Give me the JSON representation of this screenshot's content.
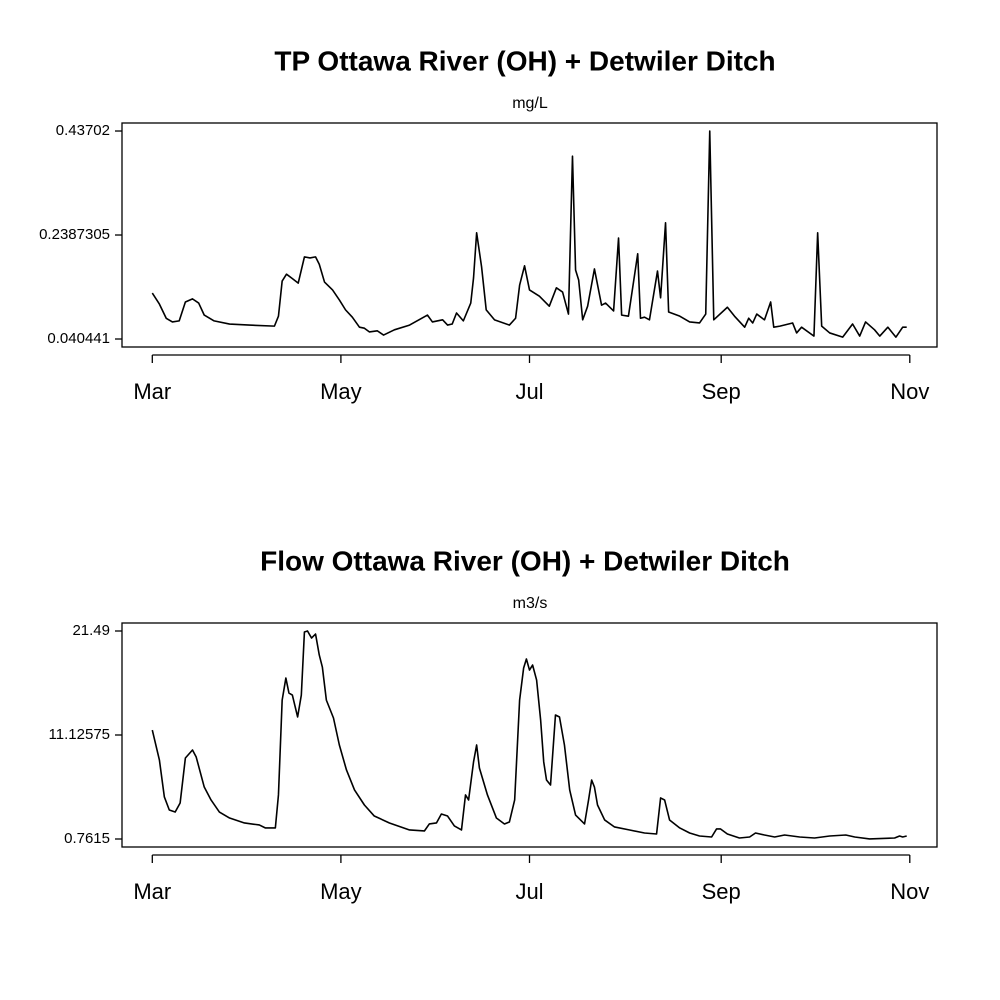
{
  "chart_data": [
    {
      "type": "line",
      "title": "TP Ottawa River (OH) + Detwiler Ditch",
      "subtitle": "mg/L",
      "color": "#000000",
      "x": [
        0,
        2.3,
        4.5,
        6.5,
        8.7,
        10.7,
        13,
        15,
        16.8,
        20,
        25,
        31.4,
        39.5,
        40.8,
        42,
        43.4,
        45,
        47.2,
        49.2,
        51,
        52.8,
        54,
        55.7,
        58.3,
        60.5,
        62.5,
        64.7,
        67,
        68.6,
        70.2,
        72.8,
        74.8,
        78.3,
        83.2,
        89,
        90.6,
        93.9,
        95.5,
        97,
        98.4,
        100.6,
        103,
        103.9,
        104.9,
        106.5,
        108,
        110.7,
        115.5,
        117.5,
        118.8,
        120.4,
        122,
        125.2,
        128.4,
        130.7,
        132.7,
        134.6,
        135.9,
        136.9,
        137.9,
        139.2,
        140.8,
        143,
        145.3,
        146.6,
        149.2,
        150.8,
        151.8,
        154,
        157,
        157.9,
        159.2,
        160.8,
        163.4,
        164.4,
        166,
        167,
        170.6,
        173.8,
        177,
        179,
        180.3,
        181.6,
        186,
        188.3,
        191.6,
        192.9,
        194.2,
        195.5,
        198,
        200,
        201,
        203,
        207.1,
        208.4,
        210,
        214,
        215.2,
        216.5,
        219.1,
        223.3,
        226.5,
        228.8,
        230.7,
        233.6,
        235.3,
        237.9,
        240.5,
        242.7,
        244
      ],
      "values": [
        0.128,
        0.107,
        0.08,
        0.073,
        0.075,
        0.111,
        0.117,
        0.109,
        0.086,
        0.075,
        0.069,
        0.067,
        0.065,
        0.084,
        0.151,
        0.164,
        0.157,
        0.147,
        0.197,
        0.195,
        0.197,
        0.183,
        0.149,
        0.134,
        0.115,
        0.096,
        0.082,
        0.063,
        0.061,
        0.054,
        0.056,
        0.048,
        0.058,
        0.067,
        0.086,
        0.073,
        0.077,
        0.067,
        0.069,
        0.09,
        0.075,
        0.109,
        0.157,
        0.243,
        0.178,
        0.096,
        0.077,
        0.067,
        0.08,
        0.143,
        0.18,
        0.134,
        0.122,
        0.103,
        0.138,
        0.13,
        0.088,
        0.389,
        0.172,
        0.153,
        0.077,
        0.103,
        0.174,
        0.105,
        0.109,
        0.094,
        0.233,
        0.086,
        0.084,
        0.203,
        0.08,
        0.082,
        0.077,
        0.17,
        0.119,
        0.262,
        0.092,
        0.084,
        0.073,
        0.071,
        0.088,
        0.437,
        0.077,
        0.101,
        0.084,
        0.063,
        0.08,
        0.071,
        0.088,
        0.077,
        0.111,
        0.063,
        0.065,
        0.071,
        0.052,
        0.063,
        0.046,
        0.243,
        0.065,
        0.052,
        0.044,
        0.069,
        0.046,
        0.073,
        0.058,
        0.046,
        0.063,
        0.044,
        0.063,
        0.063
      ],
      "xlim": [
        -9.8,
        253.8
      ],
      "xticks": [
        {
          "value": 0,
          "label": "Mar"
        },
        {
          "value": 61,
          "label": "May"
        },
        {
          "value": 122,
          "label": "Jul"
        },
        {
          "value": 184,
          "label": "Sep"
        },
        {
          "value": 245,
          "label": "Nov"
        }
      ],
      "ylim": [
        0.0252,
        0.4523
      ],
      "yticks": [
        0.040441,
        0.2387305,
        0.43702
      ]
    },
    {
      "type": "line",
      "title": "Flow Ottawa River (OH) + Detwiler Ditch",
      "subtitle": "m3/s",
      "color": "#000000",
      "x": [
        0,
        2.3,
        3.9,
        5.5,
        7.4,
        9,
        10.7,
        13,
        14.2,
        16.8,
        19,
        21.7,
        25,
        29.8,
        34.6,
        36.6,
        39.8,
        40.8,
        42,
        43.2,
        44.2,
        45.3,
        47,
        48.2,
        49.2,
        50.2,
        51.5,
        52.8,
        54,
        55,
        56.3,
        58.6,
        60.5,
        62.8,
        65.4,
        68.6,
        71.8,
        76.7,
        83.2,
        88,
        89.6,
        91.9,
        93.5,
        95.5,
        97.7,
        100,
        101.3,
        102.3,
        103.9,
        104.9,
        105.8,
        108.4,
        111.3,
        113.9,
        115.5,
        117.2,
        118.8,
        120.1,
        121,
        122,
        123,
        124.3,
        125.6,
        126.6,
        127.5,
        128.8,
        130.4,
        131.7,
        133.3,
        135,
        136.9,
        139.8,
        141.1,
        142.1,
        143,
        144,
        146.3,
        149.5,
        154.4,
        159.2,
        163.1,
        164.4,
        165.7,
        167.3,
        170.6,
        173.8,
        177,
        180.9,
        182.5,
        183.8,
        186,
        189.9,
        193.2,
        195.1,
        198,
        201.3,
        204.5,
        209.4,
        214.2,
        219.1,
        224.3,
        227.2,
        232,
        240.1,
        241.7,
        242.7,
        244
      ],
      "values": [
        11.62,
        8.63,
        4.95,
        3.65,
        3.45,
        4.35,
        8.83,
        9.63,
        8.93,
        5.94,
        4.65,
        3.45,
        2.85,
        2.36,
        2.16,
        1.86,
        1.86,
        5.15,
        14.6,
        16.8,
        15.3,
        15.1,
        12.92,
        15.1,
        21.39,
        21.49,
        20.79,
        21.19,
        19.1,
        17.9,
        14.6,
        12.82,
        10.13,
        7.64,
        5.65,
        4.15,
        3.05,
        2.36,
        1.66,
        1.56,
        2.26,
        2.36,
        3.25,
        3.05,
        2.06,
        1.66,
        5.15,
        4.65,
        8.44,
        10.13,
        7.84,
        5.15,
        2.85,
        2.26,
        2.46,
        4.65,
        14.6,
        17.8,
        18.7,
        17.6,
        18.1,
        16.6,
        12.62,
        8.44,
        6.64,
        6.14,
        13.12,
        12.92,
        10.13,
        5.65,
        3.15,
        2.26,
        4.65,
        6.64,
        5.94,
        4.15,
        2.66,
        1.96,
        1.66,
        1.36,
        1.26,
        4.85,
        4.65,
        2.66,
        1.86,
        1.36,
        1.06,
        0.96,
        1.76,
        1.76,
        1.26,
        0.86,
        0.96,
        1.36,
        1.16,
        0.96,
        1.16,
        0.96,
        0.86,
        1.06,
        1.16,
        0.96,
        0.77,
        0.86,
        1.06,
        0.96,
        1.06
      ],
      "xlim": [
        -9.8,
        253.8
      ],
      "xticks": [
        {
          "value": 0,
          "label": "Mar"
        },
        {
          "value": 61,
          "label": "May"
        },
        {
          "value": 122,
          "label": "Jul"
        },
        {
          "value": 184,
          "label": "Sep"
        },
        {
          "value": 245,
          "label": "Nov"
        }
      ],
      "ylim": [
        -0.036,
        22.287
      ],
      "yticks": [
        0.7615,
        11.12575,
        21.49
      ]
    }
  ]
}
